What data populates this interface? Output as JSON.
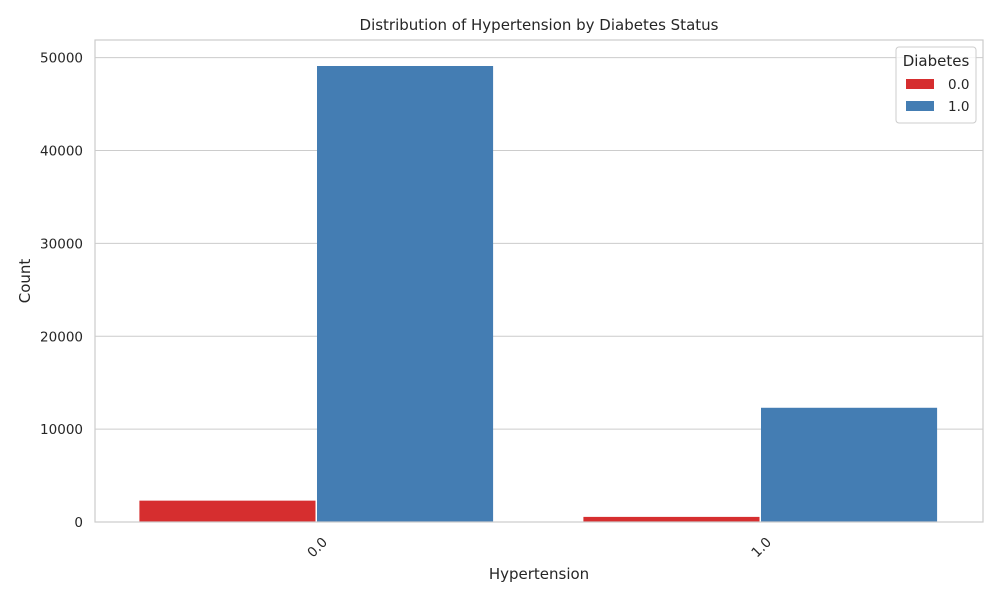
{
  "chart_data": {
    "type": "bar",
    "title": "Distribution of Hypertension by Diabetes Status",
    "xlabel": "Hypertension",
    "ylabel": "Count",
    "categories": [
      "0.0",
      "1.0"
    ],
    "series": [
      {
        "name": "0.0",
        "color": "#d62e2f",
        "values": [
          2300,
          550
        ]
      },
      {
        "name": "1.0",
        "color": "#447db3",
        "values": [
          49100,
          12300
        ]
      }
    ],
    "ylim": [
      0,
      51900
    ],
    "yticks": [
      0,
      10000,
      20000,
      30000,
      40000,
      50000
    ],
    "ytick_labels": [
      "0",
      "10000",
      "20000",
      "30000",
      "40000",
      "50000"
    ],
    "legend": {
      "title": "Diabetes",
      "placement": "top-right"
    },
    "grid": true
  }
}
